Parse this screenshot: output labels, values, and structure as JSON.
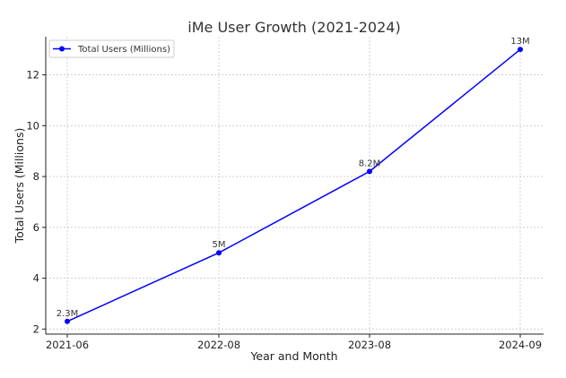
{
  "chart_data": {
    "type": "line",
    "title": "iMe User Growth (2021-2024)",
    "xlabel": "Year and Month",
    "ylabel": "Total Users (Millions)",
    "categories": [
      "2021-06",
      "2022-08",
      "2023-08",
      "2024-09"
    ],
    "series": [
      {
        "name": "Total Users (Millions)",
        "values": [
          2.3,
          5,
          8.2,
          13
        ],
        "labels": [
          "2.3M",
          "5M",
          "8.2M",
          "13M"
        ],
        "color": "#0000ff"
      }
    ],
    "ylim": [
      1.8,
      13.5
    ],
    "yticks": [
      2,
      4,
      6,
      8,
      10,
      12
    ],
    "grid": true,
    "legend_position": "top-left"
  }
}
